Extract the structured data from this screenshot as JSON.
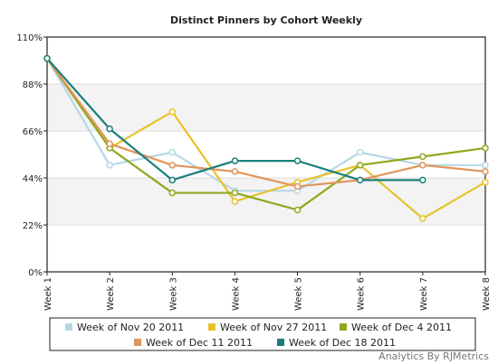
{
  "chart_data": {
    "type": "line",
    "title": "Distinct Pinners by Cohort Weekly",
    "xlabel": "",
    "ylabel": "",
    "categories": [
      "Week 1",
      "Week 2",
      "Week 3",
      "Week 4",
      "Week 5",
      "Week 6",
      "Week 7",
      "Week 8"
    ],
    "y_ticks": [
      "0%",
      "22%",
      "44%",
      "66%",
      "88%",
      "110%"
    ],
    "ylim": [
      0,
      110
    ],
    "grid": "alternating horizontal bands",
    "legend_placement": "bottom",
    "series": [
      {
        "name": "Week of Nov 20 2011",
        "color": "#b8d7e6",
        "values": [
          100,
          50,
          56,
          38,
          38,
          56,
          50,
          50
        ]
      },
      {
        "name": "Week of Nov 27 2011",
        "color": "#e8c22a",
        "values": [
          100,
          58,
          75,
          33,
          42,
          50,
          25,
          42
        ]
      },
      {
        "name": "Week of Dec 4 2011",
        "color": "#8caa1e",
        "values": [
          100,
          58,
          37,
          37,
          29,
          50,
          54,
          58
        ]
      },
      {
        "name": "Week of Dec 11 2011",
        "color": "#e0955a",
        "values": [
          100,
          60,
          50,
          47,
          40,
          43,
          50,
          47
        ]
      },
      {
        "name": "Week of Dec 18 2011",
        "color": "#1a7f7a",
        "values": [
          100,
          67,
          43,
          52,
          52,
          43,
          43,
          null
        ]
      }
    ]
  },
  "credit": {
    "text": "Analytics By RJMetrics"
  }
}
